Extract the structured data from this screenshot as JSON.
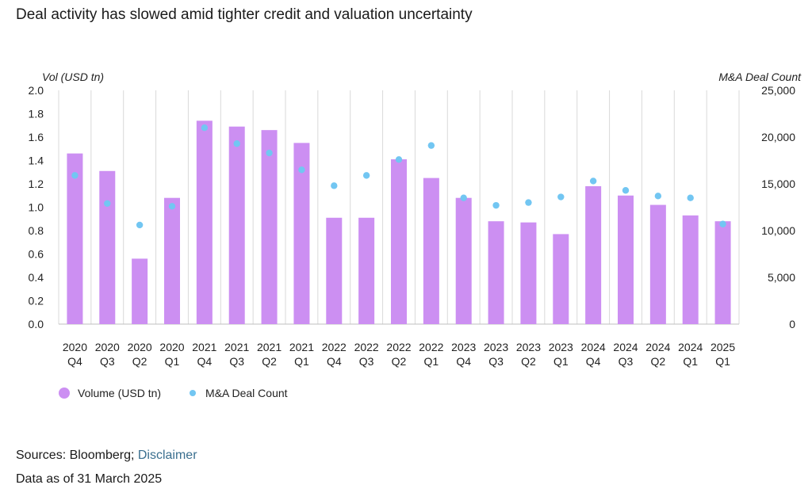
{
  "title": "Deal activity has slowed amid tighter credit and valuation uncertainty",
  "colors": {
    "bar": "#cc8ff2",
    "dot": "#72c6f2",
    "grid": "#d9d9d9",
    "link": "#3a6f8f"
  },
  "chart_data": {
    "type": "bar",
    "categories": [
      [
        "2020",
        "Q4"
      ],
      [
        "2020",
        "Q3"
      ],
      [
        "2020",
        "Q2"
      ],
      [
        "2020",
        "Q1"
      ],
      [
        "2021",
        "Q4"
      ],
      [
        "2021",
        "Q3"
      ],
      [
        "2021",
        "Q2"
      ],
      [
        "2021",
        "Q1"
      ],
      [
        "2022",
        "Q4"
      ],
      [
        "2022",
        "Q3"
      ],
      [
        "2022",
        "Q2"
      ],
      [
        "2022",
        "Q1"
      ],
      [
        "2023",
        "Q4"
      ],
      [
        "2023",
        "Q3"
      ],
      [
        "2023",
        "Q2"
      ],
      [
        "2023",
        "Q1"
      ],
      [
        "2024",
        "Q4"
      ],
      [
        "2024",
        "Q3"
      ],
      [
        "2024",
        "Q2"
      ],
      [
        "2024",
        "Q1"
      ],
      [
        "2025",
        "Q1"
      ]
    ],
    "series": [
      {
        "name": "Volume (USD tn)",
        "axis": "left",
        "type": "bar",
        "values": [
          1.46,
          1.31,
          0.56,
          1.08,
          1.74,
          1.69,
          1.66,
          1.55,
          0.91,
          0.91,
          1.41,
          1.25,
          1.08,
          0.88,
          0.87,
          0.77,
          1.18,
          1.1,
          1.02,
          0.93,
          0.88
        ]
      },
      {
        "name": "M&A Deal Count",
        "axis": "right",
        "type": "scatter",
        "values": [
          15900,
          12900,
          10600,
          12600,
          21000,
          19300,
          18300,
          16500,
          14800,
          15900,
          17600,
          19100,
          13500,
          12700,
          13000,
          13600,
          15300,
          14300,
          13700,
          13500,
          10700
        ]
      }
    ],
    "ylabel_left": "Vol (USD tn)",
    "ylabel_right": "M&A Deal Count",
    "ylim_left": [
      0,
      2.0
    ],
    "ylim_right": [
      0,
      25000
    ],
    "yticks_left": [
      "0.0",
      "0.2",
      "0.4",
      "0.6",
      "0.8",
      "1.0",
      "1.2",
      "1.4",
      "1.6",
      "1.8",
      "2.0"
    ],
    "yticks_right": [
      "0",
      "5,000",
      "10,000",
      "15,000",
      "20,000",
      "25,000"
    ],
    "grid": "vertical",
    "legend": "bottom-left"
  },
  "legend": {
    "bar_label": "Volume (USD tn)",
    "dot_label": "M&A Deal Count"
  },
  "footer": {
    "sources_prefix": "Sources: Bloomberg; ",
    "disclaimer_link": "Disclaimer",
    "data_as_of": "Data as of 31 March 2025"
  }
}
